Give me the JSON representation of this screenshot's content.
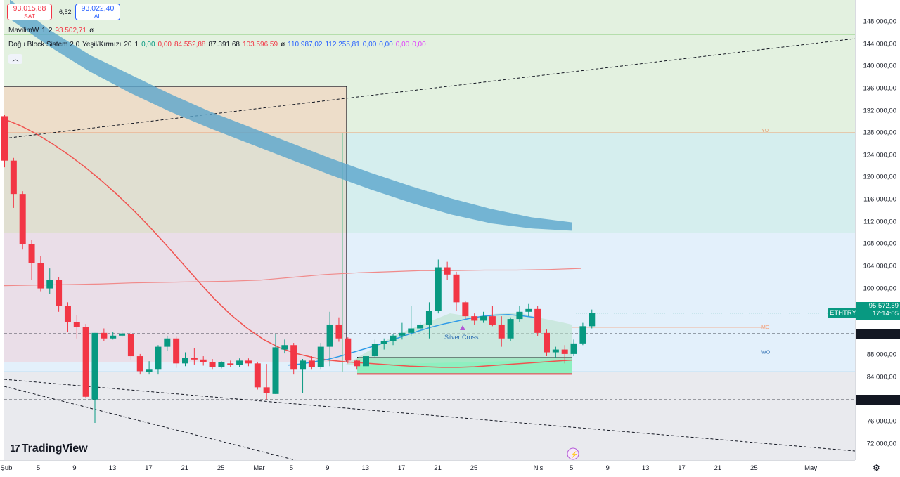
{
  "quote": {
    "sell_price": "93.015,88",
    "sell_label": "SAT",
    "spread": "6,52",
    "buy_price": "93.022,40",
    "buy_label": "AL"
  },
  "legend": {
    "line1": [
      "MavilimW",
      "1",
      "2",
      "93.502,71",
      "ø"
    ],
    "line2": [
      {
        "text": "Doğu Block Sistem 2.0",
        "color": "#131722"
      },
      {
        "text": "Yeşil/Kırmızı",
        "color": "#131722"
      },
      {
        "text": "20",
        "color": "#131722"
      },
      {
        "text": "1",
        "color": "#131722"
      },
      {
        "text": "0,00",
        "color": "#089981"
      },
      {
        "text": "0,00",
        "color": "#f23645"
      },
      {
        "text": "84.552,88",
        "color": "#f23645"
      },
      {
        "text": "87.391,68",
        "color": "#131722"
      },
      {
        "text": "103.596,59",
        "color": "#f23645"
      },
      {
        "text": "ø",
        "color": "#131722"
      },
      {
        "text": "110.987,02",
        "color": "#2962ff"
      },
      {
        "text": "112.255,81",
        "color": "#2962ff"
      },
      {
        "text": "0,00",
        "color": "#2962ff"
      },
      {
        "text": "0,00",
        "color": "#2962ff"
      },
      {
        "text": "0,00",
        "color": "#e040fb"
      },
      {
        "text": "0,00",
        "color": "#e040fb"
      }
    ]
  },
  "branding": {
    "logo_mark": "17",
    "logo_text": "TradingView"
  },
  "annotations": {
    "silver_cross": "Silver Cross",
    "yo": "YO",
    "mo": "MO",
    "wo": "WO"
  },
  "price_flags": {
    "symbol": "ETHTRY",
    "last_price": "95.572,59",
    "countdown": "17:14:05",
    "level_1": "91.842,51",
    "level_2": "79.954,42"
  },
  "chart_data": {
    "type": "candlestick",
    "symbol": "ETHTRY",
    "y_axis": {
      "ylim": [
        68000,
        152000
      ],
      "tick_values": [
        72000,
        76000,
        80000,
        84000,
        88000,
        92000,
        96000,
        100000,
        104000,
        108000,
        112000,
        116000,
        120000,
        124000,
        128000,
        132000,
        136000,
        140000,
        144000,
        148000
      ],
      "tick_labels": [
        "72.000,00",
        "76.000,00",
        "80.000,00",
        "84.000,00",
        "88.000,00",
        "92.000,00",
        "96.000,00",
        "100.000,00",
        "104.000,00",
        "108.000,00",
        "112.000,00",
        "116.000,00",
        "120.000,00",
        "124.000,00",
        "128.000,00",
        "132.000,00",
        "136.000,00",
        "140.000,00",
        "144.000,00",
        "148.000,00"
      ]
    },
    "x_axis": {
      "labels": [
        "Şub",
        "5",
        "9",
        "13",
        "17",
        "21",
        "25",
        "Mar",
        "5",
        "9",
        "13",
        "17",
        "21",
        "25",
        "Nis",
        "5",
        "9",
        "13",
        "17",
        "21",
        "25",
        "May"
      ],
      "label_day_index": [
        0,
        4,
        8,
        12,
        16,
        20,
        24,
        28,
        32,
        36,
        40,
        44,
        48,
        52,
        59,
        63,
        67,
        71,
        75,
        79,
        83,
        89
      ]
    },
    "candles": [
      {
        "o": 131000,
        "h": 131200,
        "l": 121800,
        "c": 123000
      },
      {
        "o": 123000,
        "h": 123500,
        "l": 114500,
        "c": 117000
      },
      {
        "o": 117000,
        "h": 117500,
        "l": 107000,
        "c": 108000
      },
      {
        "o": 108000,
        "h": 108800,
        "l": 101500,
        "c": 104500
      },
      {
        "o": 104500,
        "h": 105800,
        "l": 99500,
        "c": 100000
      },
      {
        "o": 100000,
        "h": 103600,
        "l": 99000,
        "c": 101500
      },
      {
        "o": 101500,
        "h": 102000,
        "l": 95800,
        "c": 96800
      },
      {
        "o": 96800,
        "h": 97500,
        "l": 92200,
        "c": 94000
      },
      {
        "o": 94000,
        "h": 95200,
        "l": 91000,
        "c": 93000
      },
      {
        "o": 93000,
        "h": 93600,
        "l": 80200,
        "c": 80500
      },
      {
        "o": 80000,
        "h": 92000,
        "l": 75800,
        "c": 92000
      },
      {
        "o": 92000,
        "h": 92800,
        "l": 90500,
        "c": 91000
      },
      {
        "o": 91000,
        "h": 92200,
        "l": 90800,
        "c": 91500
      },
      {
        "o": 91500,
        "h": 92500,
        "l": 91200,
        "c": 91900
      },
      {
        "o": 91800,
        "h": 92100,
        "l": 87200,
        "c": 87800
      },
      {
        "o": 87800,
        "h": 88200,
        "l": 84500,
        "c": 85100
      },
      {
        "o": 85000,
        "h": 86900,
        "l": 84500,
        "c": 85500
      },
      {
        "o": 85500,
        "h": 89800,
        "l": 84500,
        "c": 89500
      },
      {
        "o": 89500,
        "h": 91500,
        "l": 88800,
        "c": 91000
      },
      {
        "o": 91000,
        "h": 91300,
        "l": 85700,
        "c": 86500
      },
      {
        "o": 86500,
        "h": 88500,
        "l": 86000,
        "c": 87500
      },
      {
        "o": 87500,
        "h": 89200,
        "l": 86300,
        "c": 87200
      },
      {
        "o": 87200,
        "h": 87800,
        "l": 86100,
        "c": 86700
      },
      {
        "o": 86700,
        "h": 87300,
        "l": 85500,
        "c": 85900
      },
      {
        "o": 85900,
        "h": 86900,
        "l": 85600,
        "c": 86700
      },
      {
        "o": 86500,
        "h": 87000,
        "l": 85900,
        "c": 86200
      },
      {
        "o": 86200,
        "h": 87400,
        "l": 85800,
        "c": 87000
      },
      {
        "o": 87000,
        "h": 87400,
        "l": 86000,
        "c": 86500
      },
      {
        "o": 86500,
        "h": 86800,
        "l": 81800,
        "c": 82200
      },
      {
        "o": 82200,
        "h": 86400,
        "l": 80000,
        "c": 81200
      },
      {
        "o": 81000,
        "h": 91800,
        "l": 81000,
        "c": 89400
      },
      {
        "o": 89000,
        "h": 90800,
        "l": 88300,
        "c": 89800
      },
      {
        "o": 89800,
        "h": 90200,
        "l": 84500,
        "c": 85500
      },
      {
        "o": 85500,
        "h": 87300,
        "l": 81200,
        "c": 87000
      },
      {
        "o": 87000,
        "h": 87800,
        "l": 85500,
        "c": 85800
      },
      {
        "o": 85800,
        "h": 90200,
        "l": 85500,
        "c": 89500
      },
      {
        "o": 89500,
        "h": 95800,
        "l": 86000,
        "c": 93500
      },
      {
        "o": 93500,
        "h": 94800,
        "l": 90400,
        "c": 91000
      },
      {
        "o": 91000,
        "h": 91200,
        "l": 86500,
        "c": 87000
      },
      {
        "o": 87000,
        "h": 87200,
        "l": 85500,
        "c": 86000
      },
      {
        "o": 86000,
        "h": 88000,
        "l": 85000,
        "c": 87800
      },
      {
        "o": 87800,
        "h": 90800,
        "l": 87500,
        "c": 90000
      },
      {
        "o": 90000,
        "h": 91000,
        "l": 89000,
        "c": 90500
      },
      {
        "o": 90500,
        "h": 91800,
        "l": 89800,
        "c": 91500
      },
      {
        "o": 91500,
        "h": 93800,
        "l": 90800,
        "c": 92000
      },
      {
        "o": 92000,
        "h": 96800,
        "l": 91500,
        "c": 92800
      },
      {
        "o": 92800,
        "h": 94000,
        "l": 92000,
        "c": 93500
      },
      {
        "o": 93500,
        "h": 97500,
        "l": 91000,
        "c": 96000
      },
      {
        "o": 96000,
        "h": 105200,
        "l": 95500,
        "c": 103800
      },
      {
        "o": 103800,
        "h": 104800,
        "l": 101500,
        "c": 102500
      },
      {
        "o": 102500,
        "h": 103000,
        "l": 96000,
        "c": 97500
      },
      {
        "o": 97500,
        "h": 97800,
        "l": 94500,
        "c": 95000
      },
      {
        "o": 95000,
        "h": 95500,
        "l": 93500,
        "c": 94200
      },
      {
        "o": 94200,
        "h": 95800,
        "l": 93800,
        "c": 95000
      },
      {
        "o": 95000,
        "h": 96800,
        "l": 93200,
        "c": 93500
      },
      {
        "o": 93500,
        "h": 95000,
        "l": 89500,
        "c": 91000
      },
      {
        "o": 91000,
        "h": 94800,
        "l": 90500,
        "c": 94500
      },
      {
        "o": 94500,
        "h": 96800,
        "l": 94000,
        "c": 95800
      },
      {
        "o": 95800,
        "h": 97200,
        "l": 95000,
        "c": 96300
      },
      {
        "o": 96300,
        "h": 96800,
        "l": 91400,
        "c": 92000
      },
      {
        "o": 92000,
        "h": 92600,
        "l": 87800,
        "c": 88500
      },
      {
        "o": 88500,
        "h": 89500,
        "l": 87500,
        "c": 89000
      },
      {
        "o": 89000,
        "h": 89800,
        "l": 86500,
        "c": 88200
      },
      {
        "o": 88200,
        "h": 90800,
        "l": 87800,
        "c": 90100
      },
      {
        "o": 90100,
        "h": 93800,
        "l": 89800,
        "c": 93200
      },
      {
        "o": 93200,
        "h": 96200,
        "l": 92800,
        "c": 95572.59
      }
    ],
    "overlays": {
      "mavilimw_red": [
        130500,
        129300,
        127800,
        126000,
        124000,
        121800,
        119400,
        116800,
        114000,
        111000,
        107800,
        104500,
        101200,
        98000,
        95200,
        92800,
        90800,
        89300,
        88300,
        87600,
        87100,
        86800,
        86600,
        86400,
        86200,
        86000,
        85900,
        85800,
        85800,
        85900,
        86100,
        86300,
        86500,
        86700,
        86900,
        87100
      ],
      "mavilimw_blue": [
        86200,
        86400,
        86800,
        87200,
        87800,
        88500,
        89200,
        89900,
        90700,
        91500,
        92300,
        93000,
        93600,
        94100,
        94600,
        95000,
        95200,
        95300,
        95100,
        94800
      ],
      "cloud_upper": [
        152000,
        146500,
        142000,
        138500,
        135000,
        131800,
        129000,
        126200,
        123400,
        120800,
        118400,
        116200,
        114300,
        112800,
        111900
      ],
      "cloud_lower": [
        148500,
        143500,
        139000,
        135200,
        131800,
        128800,
        126000,
        123200,
        120400,
        117800,
        115400,
        113300,
        111700,
        110800,
        110400
      ],
      "band_line": [
        100500,
        100600,
        100700,
        100800,
        101000,
        101100,
        101200,
        101300,
        101500,
        102000,
        102500,
        102800,
        103000,
        103200,
        103200,
        103300,
        103300,
        103400,
        103600
      ],
      "yo_level": 128000,
      "mo_level": 93000,
      "wo_level": 88000,
      "h_lines_dashed": [
        91842.51,
        79954.42
      ],
      "h_line_teal": 110000,
      "h_line_blue": 85000
    },
    "marker": {
      "label": "Silver Cross"
    },
    "grid": false
  }
}
